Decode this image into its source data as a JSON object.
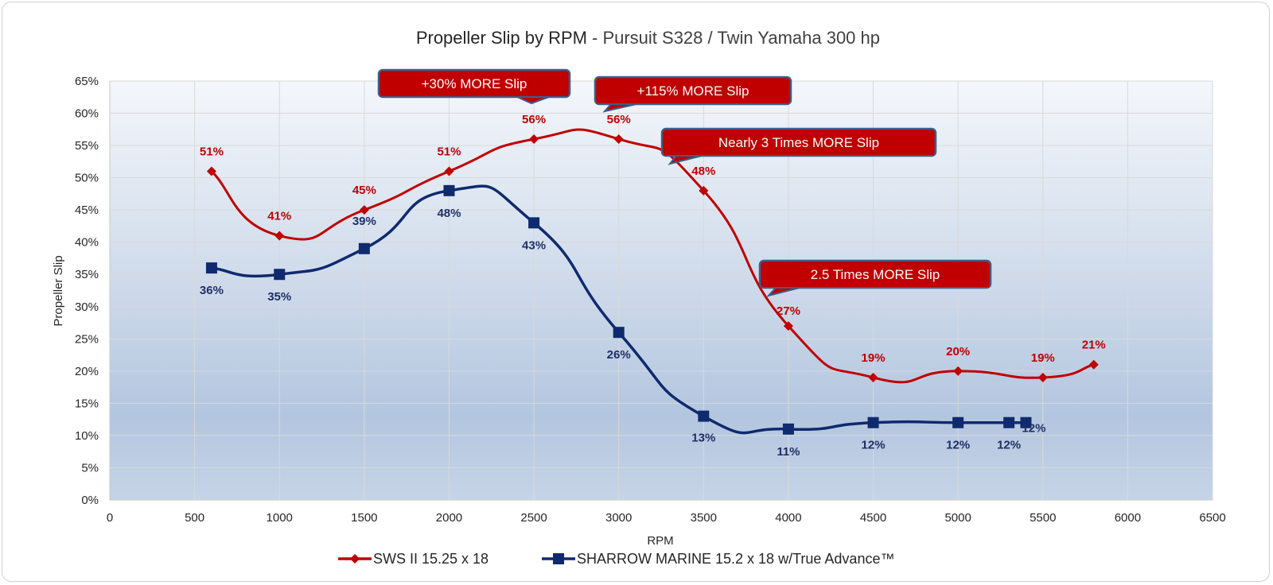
{
  "chart_data": {
    "type": "line",
    "title": "Propeller Slip by RPM",
    "subtitle": "- Pursuit S328 / Twin Yamaha 300 hp",
    "xlabel": "RPM",
    "ylabel": "Propeller Slip",
    "xlim": [
      0,
      6500
    ],
    "ylim": [
      0,
      65
    ],
    "x_ticks": [
      "0",
      "500",
      "1000",
      "1500",
      "2000",
      "2500",
      "3000",
      "3500",
      "4000",
      "4500",
      "5000",
      "5500",
      "6000",
      "6500"
    ],
    "y_ticks": [
      "0%",
      "5%",
      "10%",
      "15%",
      "20%",
      "25%",
      "30%",
      "35%",
      "40%",
      "45%",
      "50%",
      "55%",
      "60%",
      "65%"
    ],
    "grid": true,
    "legend_position": "bottom",
    "series": [
      {
        "name": "SWS II 15.25 x 18",
        "color": "#c00000",
        "marker": "diamond",
        "x": [
          600,
          1000,
          1500,
          2000,
          2500,
          3000,
          3500,
          4000,
          4500,
          5000,
          5500,
          5800
        ],
        "values": [
          51,
          41,
          45,
          51,
          56,
          56,
          48,
          27,
          19,
          20,
          19,
          21
        ],
        "labels": [
          "51%",
          "41%",
          "45%",
          "51%",
          "56%",
          "56%",
          "48%",
          "27%",
          "19%",
          "20%",
          "19%",
          "21%"
        ]
      },
      {
        "name": "SHARROW MARINE 15.2 x 18 w/True Advance™",
        "color": "#0f2a6e",
        "marker": "square",
        "x": [
          600,
          1000,
          1500,
          2000,
          2500,
          3000,
          3500,
          4000,
          4500,
          5000,
          5300,
          5400
        ],
        "values": [
          36,
          35,
          39,
          48,
          43,
          26,
          13,
          11,
          12,
          12,
          12,
          12
        ],
        "labels": [
          "36%",
          "35%",
          "39%",
          "48%",
          "43%",
          "26%",
          "13%",
          "11%",
          "12%",
          "12%",
          "12%",
          "12%"
        ]
      }
    ],
    "annotations": [
      {
        "text": "+30% MORE Slip",
        "near_x": 2500
      },
      {
        "text": "+115% MORE Slip",
        "near_x": 3000
      },
      {
        "text": "Nearly 3 Times MORE Slip",
        "near_x": 3500
      },
      {
        "text": "2.5 Times MORE Slip",
        "near_x": 4000
      }
    ]
  },
  "colors": {
    "callout_fill": "#c00000",
    "callout_border": "#3b5e8c"
  }
}
